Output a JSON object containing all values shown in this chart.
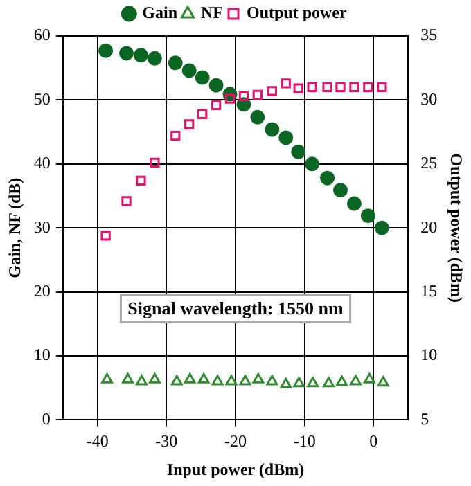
{
  "chart_data": {
    "type": "scatter",
    "xlabel": "Input power (dBm)",
    "ylabel": "Gain, NF (dB)",
    "y2label": "Output power (dBm)",
    "xlim": [
      -45,
      5
    ],
    "xticks": [
      -40,
      -30,
      -20,
      -10,
      0
    ],
    "ylim": [
      0,
      60
    ],
    "yticks": [
      0,
      10,
      20,
      30,
      40,
      50,
      60
    ],
    "y2lim": [
      5,
      35
    ],
    "y2ticks": [
      5,
      10,
      15,
      20,
      25,
      30,
      35
    ],
    "grid": true,
    "legend": "top",
    "annotations": [
      "Signal wavelength: 1550 nm"
    ],
    "series": [
      {
        "name": "Gain",
        "color": "#0b6623",
        "marker": "circle",
        "x": [
          -38.8,
          -35.8,
          -33.7,
          -31.7,
          -28.7,
          -26.7,
          -24.8,
          -22.8,
          -20.8,
          -18.8,
          -16.8,
          -14.7,
          -12.7,
          -10.9,
          -8.9,
          -6.7,
          -4.8,
          -2.8,
          -0.8,
          1.2
        ],
        "values": [
          57.7,
          57.3,
          57.0,
          56.5,
          55.8,
          54.6,
          53.5,
          52.3,
          50.9,
          49.3,
          47.3,
          45.4,
          44.1,
          41.9,
          40.0,
          37.8,
          35.9,
          33.8,
          31.9,
          30.0
        ]
      },
      {
        "name": "NF",
        "color": "#2e8b2e",
        "marker": "triangle",
        "x": [
          -38.6,
          -35.6,
          -33.6,
          -31.7,
          -28.5,
          -26.6,
          -24.6,
          -22.6,
          -20.6,
          -18.6,
          -16.7,
          -14.7,
          -12.7,
          -10.8,
          -8.8,
          -6.5,
          -4.6,
          -2.6,
          -0.6,
          1.4
        ],
        "values": [
          6.3,
          6.3,
          6.0,
          6.3,
          6.0,
          6.3,
          6.3,
          6.0,
          6.0,
          6.0,
          6.3,
          6.0,
          5.5,
          5.7,
          5.7,
          5.7,
          5.9,
          6.0,
          6.3,
          5.8
        ]
      },
      {
        "name": "Output power",
        "color": "#e8106e",
        "marker": "square",
        "axis": "y2",
        "x": [
          -38.8,
          -35.8,
          -33.7,
          -31.7,
          -28.7,
          -26.7,
          -24.8,
          -22.8,
          -20.8,
          -18.8,
          -16.8,
          -14.7,
          -12.7,
          -10.9,
          -8.9,
          -6.7,
          -4.8,
          -2.8,
          -0.8,
          1.2
        ],
        "values": [
          19.4,
          22.1,
          23.7,
          25.1,
          27.2,
          28.1,
          28.9,
          29.6,
          30.1,
          30.3,
          30.4,
          30.7,
          31.3,
          30.9,
          31.0,
          31.0,
          31.0,
          31.0,
          31.0,
          31.0
        ]
      }
    ]
  }
}
